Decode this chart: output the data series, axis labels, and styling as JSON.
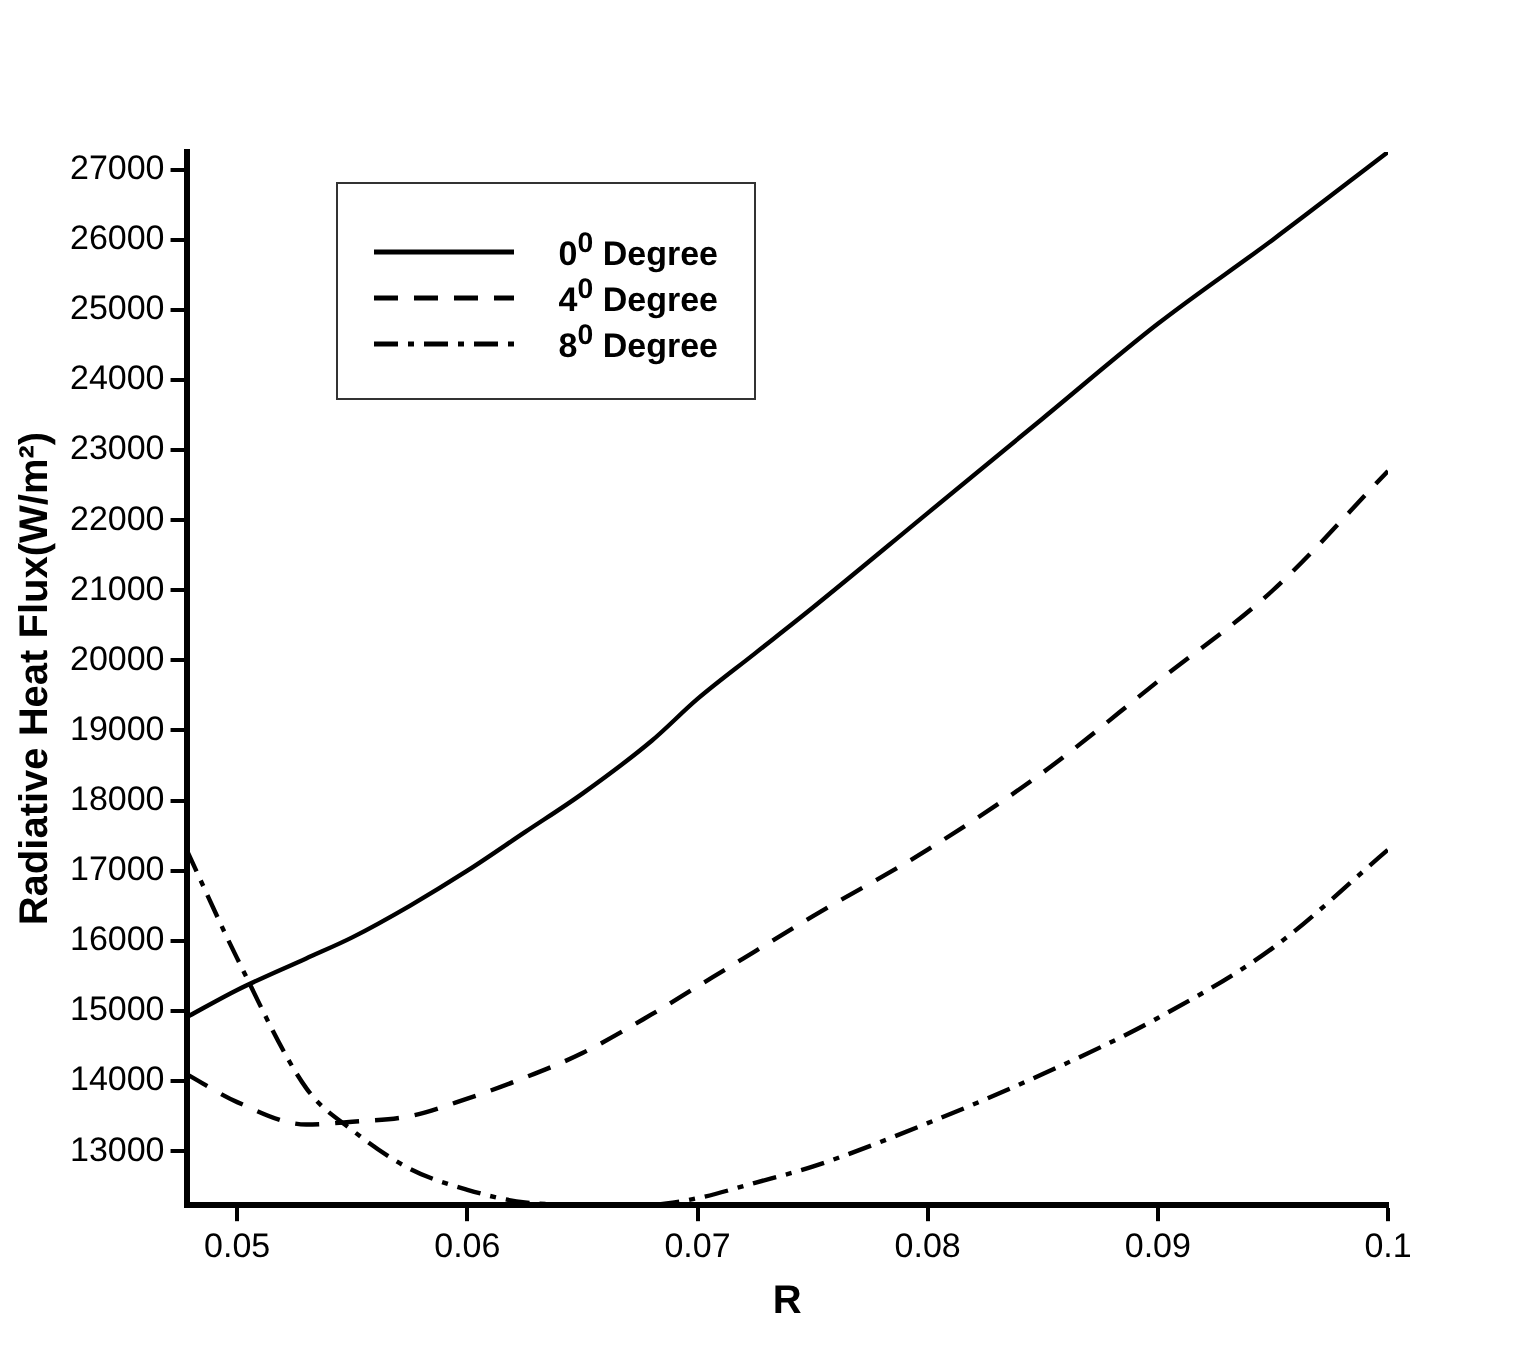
{
  "chart_data": {
    "type": "line",
    "xlabel": "R",
    "ylabel": "Radiative Heat Flux(W/m²)",
    "xlim": [
      0.0478,
      0.1
    ],
    "xticks": [
      0.05,
      0.06,
      0.07,
      0.08,
      0.09,
      0.1
    ],
    "ylim": [
      12230,
      27250
    ],
    "yticks": [
      13000,
      14000,
      15000,
      16000,
      17000,
      18000,
      19000,
      20000,
      21000,
      22000,
      23000,
      24000,
      25000,
      26000,
      27000
    ],
    "grid": false,
    "legend": "top left",
    "marker": "none",
    "x": [
      0.0478,
      0.05,
      0.053,
      0.055,
      0.0575,
      0.06,
      0.0625,
      0.065,
      0.068,
      0.07,
      0.0725,
      0.075,
      0.08,
      0.085,
      0.09,
      0.095,
      0.1
    ],
    "series": [
      {
        "name": "0$^{0}$ Degree",
        "color": "#000000",
        "line_style": "solid",
        "values": [
          14910,
          15300,
          15750,
          16050,
          16500,
          17000,
          17550,
          18100,
          18850,
          19450,
          20100,
          20750,
          22100,
          23450,
          24800,
          26000,
          27250
        ]
      },
      {
        "name": "4$^{0}$ Degree",
        "color": "#000000",
        "line_style": "dashed",
        "values": [
          14100,
          13700,
          13380,
          13420,
          13500,
          13750,
          14050,
          14400,
          14950,
          15350,
          15850,
          16350,
          17300,
          18400,
          19700,
          21000,
          22700
        ]
      },
      {
        "name": "8$^{0}$ Degree",
        "color": "#000000",
        "line_style": "dashdot",
        "values": [
          17300,
          15750,
          13900,
          13300,
          12750,
          12450,
          12270,
          12240,
          12240,
          12330,
          12550,
          12780,
          13400,
          14100,
          14900,
          15900,
          17300
        ]
      }
    ]
  }
}
